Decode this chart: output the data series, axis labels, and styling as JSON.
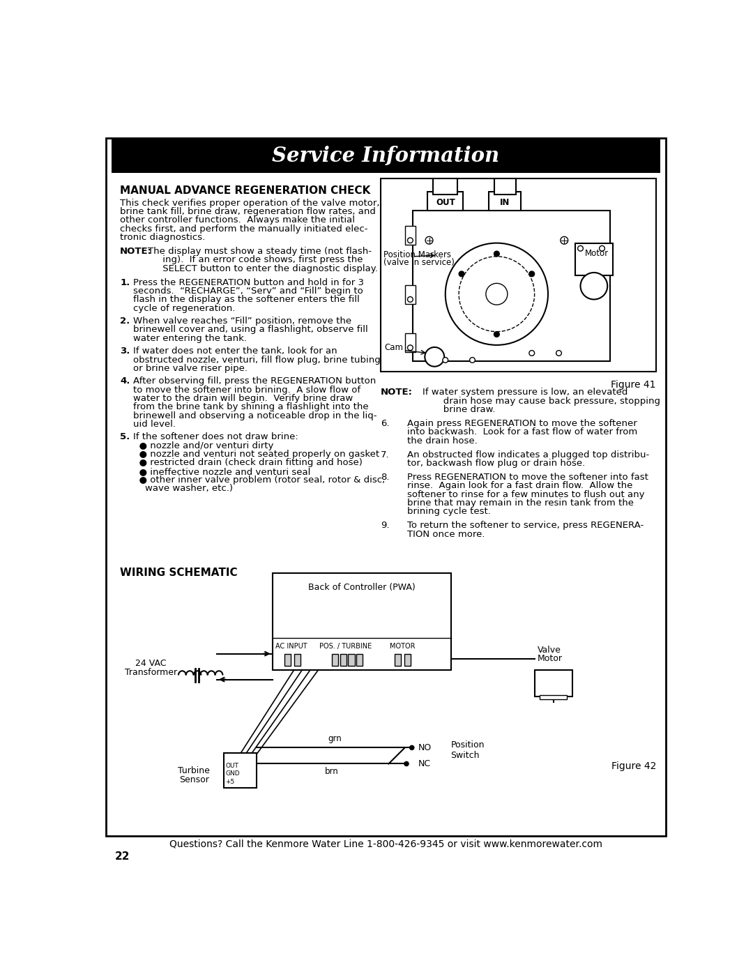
{
  "page_bg": "#ffffff",
  "header_text": "Service Information",
  "footer_text": "Questions? Call the Kenmore Water Line 1-800-426-9345 or visit www.kenmorewater.com",
  "page_number": "22",
  "fig41_label": "Figure 41",
  "fig42_label": "Figure 42"
}
